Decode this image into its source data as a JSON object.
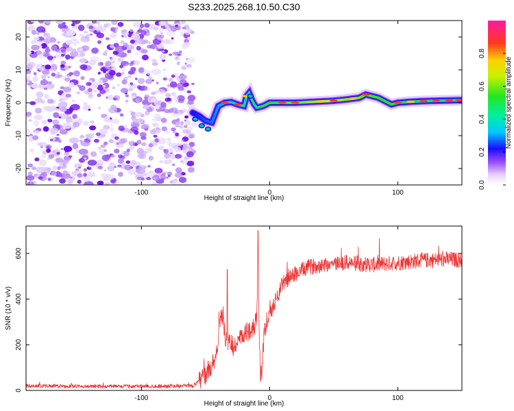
{
  "title": "S233.2025.268.10.50.C30",
  "chart_data": [
    {
      "type": "heatmap",
      "panel": "spectrogram",
      "xlabel": "Height of straight line (km)",
      "ylabel": "Frequency (Hz)",
      "xlim": [
        -190,
        150
      ],
      "ylim": [
        -25,
        25
      ],
      "xticks": [
        -100,
        0,
        100
      ],
      "yticks": [
        -20,
        -10,
        0,
        10,
        20
      ],
      "noise_region_x": [
        -190,
        -60
      ],
      "ridge_line": {
        "x": [
          -60,
          -55,
          -50,
          -45,
          -42,
          -40,
          -35,
          -30,
          -25,
          -20,
          -18,
          -16,
          -14,
          -12,
          -10,
          -5,
          0,
          10,
          20,
          30,
          40,
          50,
          60,
          70,
          75,
          80,
          85,
          90,
          95,
          100,
          110,
          120,
          130,
          140,
          150
        ],
        "y": [
          -3,
          -4,
          -5.5,
          -6,
          -3,
          -1,
          0,
          0.2,
          -0.5,
          -1,
          2,
          3,
          1,
          -0.5,
          -1.5,
          -1,
          0,
          0,
          0,
          0.2,
          0.4,
          0.6,
          1,
          1.5,
          2.5,
          2,
          1.5,
          0.5,
          -0.5,
          0,
          0.3,
          0.5,
          0.6,
          0.7,
          0.8
        ]
      },
      "colorbar": {
        "label": "Normalized spectral amplitude",
        "ticks": [
          "0.0",
          "0.2",
          "0.4",
          "0.6",
          "0.8"
        ],
        "range": [
          0,
          1
        ]
      }
    },
    {
      "type": "line",
      "panel": "snr",
      "xlabel": "Height of straight line (km)",
      "ylabel": "SNR (10 * v/v)",
      "xlim": [
        -190,
        150
      ],
      "ylim": [
        0,
        720
      ],
      "xticks": [
        -100,
        0,
        100
      ],
      "yticks": [
        0,
        200,
        400,
        600
      ],
      "line_color": "#ee3333",
      "series": [
        {
          "name": "SNR",
          "x": [
            -190,
            -150,
            -100,
            -60,
            -55,
            -50,
            -45,
            -42,
            -40,
            -38,
            -35,
            -33,
            -31,
            -28,
            -25,
            -20,
            -15,
            -12,
            -10,
            -9,
            -8,
            -6,
            -5,
            -3,
            0,
            5,
            10,
            20,
            30,
            40,
            60,
            80,
            100,
            120,
            140,
            150
          ],
          "y": [
            20,
            18,
            18,
            20,
            40,
            70,
            110,
            150,
            230,
            350,
            250,
            190,
            210,
            190,
            210,
            240,
            270,
            280,
            320,
            650,
            200,
            60,
            200,
            290,
            330,
            400,
            470,
            510,
            540,
            550,
            560,
            550,
            560,
            570,
            575,
            570
          ],
          "peaks": [
            [
              -33,
              530
            ],
            [
              -9,
              700
            ],
            [
              -7,
              40
            ]
          ]
        }
      ]
    }
  ],
  "colors": {
    "line": "#ee3333",
    "noise_light": "#d6b8f5",
    "noise_dark": "#7a1cf0"
  }
}
